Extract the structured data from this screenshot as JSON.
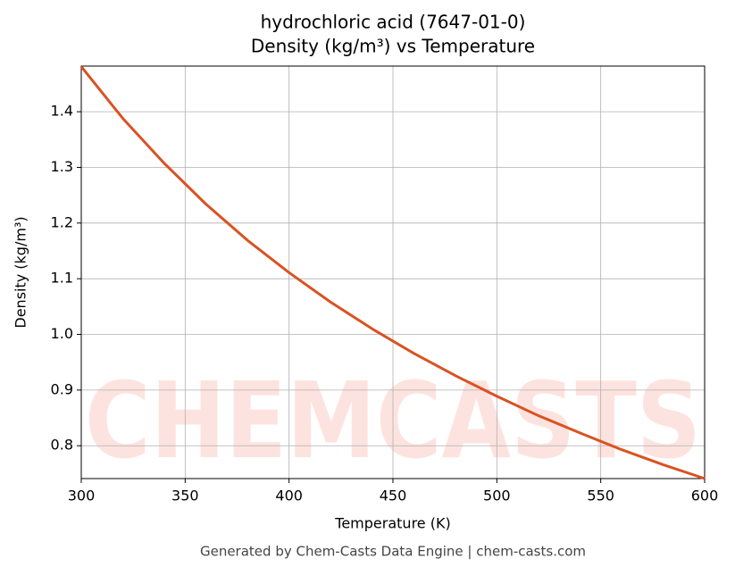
{
  "chart_data": {
    "type": "line",
    "title": [
      "hydrochloric acid (7647-01-0)",
      "Density (kg/m³) vs Temperature"
    ],
    "xlabel": "Temperature (K)",
    "ylabel": "Density (kg/m³)",
    "footer": "Generated by Chem-Casts Data Engine | chem-casts.com",
    "watermark": "CHEMCASTS",
    "x": [
      300,
      320,
      340,
      360,
      380,
      400,
      420,
      440,
      460,
      480,
      500,
      520,
      540,
      560,
      580,
      600
    ],
    "series": [
      {
        "name": "Density",
        "color": "#d95222",
        "values": [
          1.481,
          1.388,
          1.307,
          1.234,
          1.169,
          1.111,
          1.058,
          1.01,
          0.966,
          0.926,
          0.889,
          0.854,
          0.823,
          0.793,
          0.766,
          0.741
        ]
      }
    ],
    "xlim": [
      300,
      600
    ],
    "xticks": [
      300,
      350,
      400,
      450,
      500,
      550,
      600
    ],
    "ylim": [
      0.741,
      1.482
    ],
    "yticks": [
      {
        "value": 0.8,
        "label": "0.8"
      },
      {
        "value": 0.9,
        "label": "0.9"
      },
      {
        "value": 1.0,
        "label": "1.0"
      },
      {
        "value": 1.1,
        "label": "1.1"
      },
      {
        "value": 1.2,
        "label": "1.2"
      },
      {
        "value": 1.3,
        "label": "1.3"
      },
      {
        "value": 1.4,
        "label": "1.4"
      }
    ],
    "grid": true
  }
}
